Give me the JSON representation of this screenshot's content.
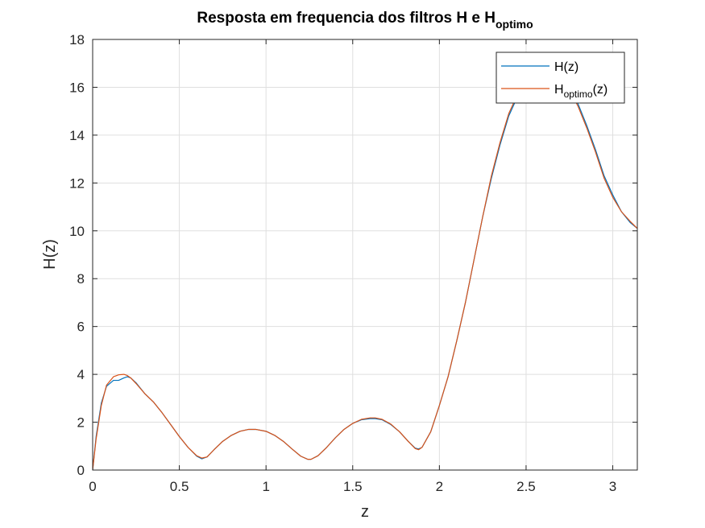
{
  "colors": {
    "series1": "#0072BD",
    "series2": "#D95319",
    "grid": "#dfdfdf",
    "axis": "#262626",
    "background": "#ffffff"
  },
  "chart_data": {
    "type": "line",
    "title_main": "Resposta em frequencia dos filtros H e H",
    "title_sub": "optimo",
    "xlabel": "z",
    "ylabel": "H(z)",
    "xlim": [
      0,
      3.1416
    ],
    "ylim": [
      0,
      18
    ],
    "xticks": [
      0,
      0.5,
      1,
      1.5,
      2,
      2.5,
      3
    ],
    "xtick_labels": [
      "0",
      "0.5",
      "1",
      "1.5",
      "2",
      "2.5",
      "3"
    ],
    "yticks": [
      0,
      2,
      4,
      6,
      8,
      10,
      12,
      14,
      16,
      18
    ],
    "ytick_labels": [
      "0",
      "2",
      "4",
      "6",
      "8",
      "10",
      "12",
      "14",
      "16",
      "18"
    ],
    "grid": true,
    "legend_position": "top-right",
    "legend": [
      {
        "main": "H(z)",
        "sub": "",
        "tail": ""
      },
      {
        "main": "H",
        "sub": "optimo",
        "tail": "(z)"
      }
    ],
    "series": [
      {
        "x": [
          0,
          0.02,
          0.05,
          0.08,
          0.12,
          0.15,
          0.18,
          0.2,
          0.22,
          0.25,
          0.3,
          0.35,
          0.4,
          0.45,
          0.5,
          0.55,
          0.6,
          0.63,
          0.66,
          0.7,
          0.75,
          0.8,
          0.85,
          0.9,
          0.94,
          1.0,
          1.05,
          1.1,
          1.15,
          1.2,
          1.24,
          1.26,
          1.3,
          1.35,
          1.4,
          1.45,
          1.5,
          1.55,
          1.6,
          1.63,
          1.67,
          1.72,
          1.77,
          1.82,
          1.86,
          1.88,
          1.9,
          1.95,
          2.0,
          2.05,
          2.1,
          2.15,
          2.2,
          2.25,
          2.3,
          2.35,
          2.4,
          2.45,
          2.5,
          2.55,
          2.6,
          2.65,
          2.7,
          2.75,
          2.8,
          2.85,
          2.9,
          2.95,
          3.0,
          3.05,
          3.1,
          3.1416
        ],
        "y": [
          0,
          1.4,
          2.8,
          3.5,
          3.75,
          3.75,
          3.85,
          3.9,
          3.85,
          3.65,
          3.2,
          2.85,
          2.4,
          1.9,
          1.4,
          0.95,
          0.58,
          0.47,
          0.55,
          0.85,
          1.2,
          1.45,
          1.62,
          1.7,
          1.7,
          1.62,
          1.45,
          1.2,
          0.88,
          0.58,
          0.45,
          0.45,
          0.6,
          0.95,
          1.35,
          1.7,
          1.95,
          2.1,
          2.15,
          2.15,
          2.1,
          1.9,
          1.6,
          1.2,
          0.92,
          0.88,
          0.95,
          1.6,
          2.7,
          3.9,
          5.4,
          7.0,
          8.8,
          10.6,
          12.2,
          13.6,
          14.8,
          15.6,
          16.1,
          16.3,
          16.3,
          16.35,
          16.3,
          16.0,
          15.3,
          14.4,
          13.4,
          12.3,
          11.5,
          10.8,
          10.35,
          10.1
        ]
      },
      {
        "x": [
          0,
          0.02,
          0.05,
          0.08,
          0.12,
          0.15,
          0.18,
          0.2,
          0.22,
          0.25,
          0.3,
          0.35,
          0.4,
          0.45,
          0.5,
          0.55,
          0.6,
          0.63,
          0.66,
          0.7,
          0.75,
          0.8,
          0.85,
          0.9,
          0.94,
          1.0,
          1.05,
          1.1,
          1.15,
          1.2,
          1.24,
          1.26,
          1.3,
          1.35,
          1.4,
          1.45,
          1.5,
          1.55,
          1.6,
          1.63,
          1.67,
          1.72,
          1.77,
          1.82,
          1.86,
          1.88,
          1.9,
          1.95,
          2.0,
          2.05,
          2.1,
          2.15,
          2.2,
          2.25,
          2.3,
          2.35,
          2.4,
          2.45,
          2.5,
          2.55,
          2.6,
          2.65,
          2.7,
          2.75,
          2.8,
          2.85,
          2.9,
          2.95,
          3.0,
          3.05,
          3.1,
          3.1416
        ],
        "y": [
          0,
          1.3,
          2.7,
          3.55,
          3.9,
          3.98,
          4.0,
          3.95,
          3.85,
          3.62,
          3.2,
          2.85,
          2.4,
          1.9,
          1.4,
          0.95,
          0.6,
          0.5,
          0.55,
          0.85,
          1.2,
          1.45,
          1.62,
          1.7,
          1.7,
          1.62,
          1.45,
          1.2,
          0.88,
          0.58,
          0.45,
          0.45,
          0.6,
          0.95,
          1.35,
          1.7,
          1.95,
          2.12,
          2.18,
          2.18,
          2.12,
          1.92,
          1.6,
          1.2,
          0.9,
          0.85,
          0.95,
          1.6,
          2.7,
          3.9,
          5.4,
          7.0,
          8.8,
          10.6,
          12.3,
          13.7,
          14.9,
          15.7,
          16.15,
          16.35,
          16.35,
          16.4,
          16.3,
          15.9,
          15.2,
          14.3,
          13.3,
          12.2,
          11.4,
          10.8,
          10.4,
          10.1
        ]
      }
    ]
  }
}
